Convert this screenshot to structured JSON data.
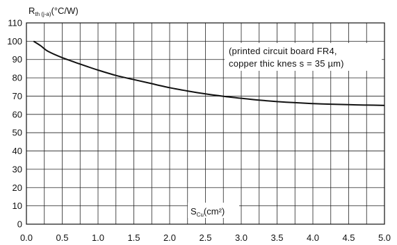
{
  "chart_data": {
    "type": "line",
    "title": "",
    "ylabel": {
      "main": "R",
      "sub": "th (j-a)",
      "unit": "(°C/W)"
    },
    "xlabel": {
      "main": "S",
      "sub": "Cu",
      "unit": "(cm²)"
    },
    "annotation": [
      "(printed  circuit  board  FR4,",
      "copper  thic knes s = 35 µm)"
    ],
    "xlim": [
      0.0,
      5.0
    ],
    "ylim": [
      0,
      110
    ],
    "x_ticks": [
      "0.0",
      "0.5",
      "1.0",
      "1.5",
      "2.0",
      "2.5",
      "3.0",
      "3.5",
      "4.0",
      "4.5",
      "5.0"
    ],
    "y_ticks": [
      "0",
      "10",
      "20",
      "30",
      "40",
      "50",
      "60",
      "70",
      "80",
      "90",
      "100",
      "110"
    ],
    "x_grid_step": 0.25,
    "y_grid_step": 10,
    "grid": true,
    "series": [
      {
        "x": [
          0.1,
          0.2,
          0.3,
          0.5,
          0.75,
          1.0,
          1.25,
          1.5,
          1.75,
          2.0,
          2.25,
          2.5,
          2.75,
          3.0,
          3.25,
          3.5,
          3.75,
          4.0,
          4.25,
          4.5,
          4.75,
          5.0
        ],
        "y": [
          100,
          97.5,
          94.5,
          91,
          87.5,
          84.2,
          81.3,
          79,
          76.8,
          74.6,
          72.8,
          71.2,
          69.9,
          68.8,
          67.8,
          67,
          66.4,
          65.9,
          65.6,
          65.3,
          65.1,
          64.9
        ]
      }
    ]
  }
}
